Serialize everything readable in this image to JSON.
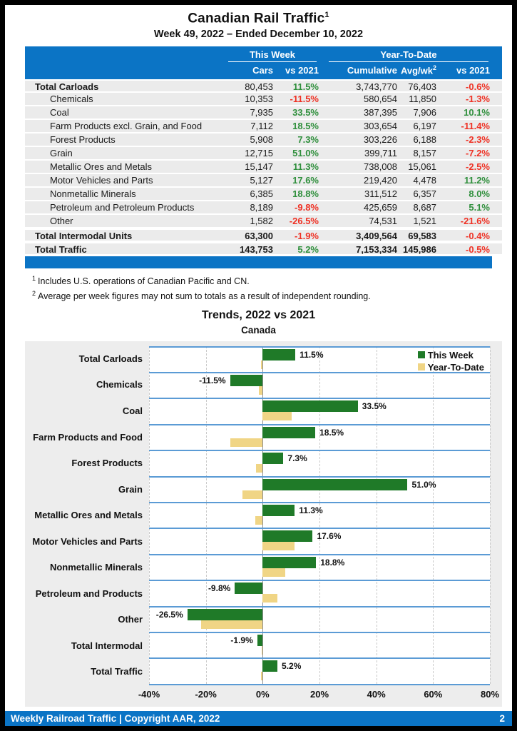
{
  "page": {
    "title": "Canadian Rail Traffic",
    "title_superscript": "1",
    "subtitle": "Week 49, 2022 – Ended December 10, 2022",
    "footer_text": "Weekly Railroad Traffic | Copyright AAR, 2022",
    "page_number": "2"
  },
  "table": {
    "group_headers": {
      "this_week": "This Week",
      "ytd": "Year-To-Date"
    },
    "col_headers": {
      "cars": "Cars",
      "tw_vs": "vs 2021",
      "cumulative": "Cumulative",
      "avg": "Avg/wk",
      "avg_superscript": "2",
      "ytd_vs": "vs 2021"
    },
    "rows": [
      {
        "label": "Total Carloads",
        "bold": true,
        "indent": false,
        "total": false,
        "cars": "80,453",
        "tw": "11.5%",
        "cum": "3,743,770",
        "avg": "76,403",
        "ytd": "-0.6%"
      },
      {
        "label": "Chemicals",
        "bold": false,
        "indent": true,
        "total": false,
        "cars": "10,353",
        "tw": "-11.5%",
        "cum": "580,654",
        "avg": "11,850",
        "ytd": "-1.3%"
      },
      {
        "label": "Coal",
        "bold": false,
        "indent": true,
        "total": false,
        "cars": "7,935",
        "tw": "33.5%",
        "cum": "387,395",
        "avg": "7,906",
        "ytd": "10.1%"
      },
      {
        "label": "Farm Products excl. Grain, and Food",
        "bold": false,
        "indent": true,
        "total": false,
        "cars": "7,112",
        "tw": "18.5%",
        "cum": "303,654",
        "avg": "6,197",
        "ytd": "-11.4%"
      },
      {
        "label": "Forest Products",
        "bold": false,
        "indent": true,
        "total": false,
        "cars": "5,908",
        "tw": "7.3%",
        "cum": "303,226",
        "avg": "6,188",
        "ytd": "-2.3%"
      },
      {
        "label": "Grain",
        "bold": false,
        "indent": true,
        "total": false,
        "cars": "12,715",
        "tw": "51.0%",
        "cum": "399,711",
        "avg": "8,157",
        "ytd": "-7.2%"
      },
      {
        "label": "Metallic Ores and Metals",
        "bold": false,
        "indent": true,
        "total": false,
        "cars": "15,147",
        "tw": "11.3%",
        "cum": "738,008",
        "avg": "15,061",
        "ytd": "-2.5%"
      },
      {
        "label": "Motor Vehicles and Parts",
        "bold": false,
        "indent": true,
        "total": false,
        "cars": "5,127",
        "tw": "17.6%",
        "cum": "219,420",
        "avg": "4,478",
        "ytd": "11.2%"
      },
      {
        "label": "Nonmetallic Minerals",
        "bold": false,
        "indent": true,
        "total": false,
        "cars": "6,385",
        "tw": "18.8%",
        "cum": "311,512",
        "avg": "6,357",
        "ytd": "8.0%"
      },
      {
        "label": "Petroleum and Petroleum Products",
        "bold": false,
        "indent": true,
        "total": false,
        "cars": "8,189",
        "tw": "-9.8%",
        "cum": "425,659",
        "avg": "8,687",
        "ytd": "5.1%"
      },
      {
        "label": "Other",
        "bold": false,
        "indent": true,
        "total": false,
        "cars": "1,582",
        "tw": "-26.5%",
        "cum": "74,531",
        "avg": "1,521",
        "ytd": "-21.6%"
      },
      {
        "label": "Total Intermodal Units",
        "bold": true,
        "indent": false,
        "total": true,
        "cars": "63,300",
        "tw": "-1.9%",
        "cum": "3,409,564",
        "avg": "69,583",
        "ytd": "-0.4%"
      },
      {
        "label": "Total Traffic",
        "bold": true,
        "indent": false,
        "total": true,
        "cars": "143,753",
        "tw": "5.2%",
        "cum": "7,153,334",
        "avg": "145,986",
        "ytd": "-0.5%"
      }
    ]
  },
  "footnotes": [
    {
      "marker": "1",
      "text": "Includes U.S. operations of Canadian Pacific and CN."
    },
    {
      "marker": "2",
      "text": "Average per week figures may not sum to totals as a result of independent rounding."
    }
  ],
  "chart_data": {
    "type": "bar",
    "orientation": "horizontal",
    "title": "Trends, 2022 vs 2021",
    "subtitle": "Canada",
    "categories": [
      "Total Carloads",
      "Chemicals",
      "Coal",
      "Farm Products and Food",
      "Forest Products",
      "Grain",
      "Metallic Ores and Metals",
      "Motor Vehicles and Parts",
      "Nonmetallic Minerals",
      "Petroleum and Products",
      "Other",
      "Total Intermodal",
      "Total Traffic"
    ],
    "series": [
      {
        "name": "This Week",
        "color": "#1f7a28",
        "values": [
          11.5,
          -11.5,
          33.5,
          18.5,
          7.3,
          51.0,
          11.3,
          17.6,
          18.8,
          -9.8,
          -26.5,
          -1.9,
          5.2
        ]
      },
      {
        "name": "Year-To-Date",
        "color": "#f0d585",
        "values": [
          -0.6,
          -1.3,
          10.1,
          -11.4,
          -2.3,
          -7.2,
          -2.5,
          11.2,
          8.0,
          5.1,
          -21.6,
          -0.4,
          -0.5
        ]
      }
    ],
    "bar_labels": [
      "11.5%",
      "-11.5%",
      "33.5%",
      "18.5%",
      "7.3%",
      "51.0%",
      "11.3%",
      "17.6%",
      "18.8%",
      "-9.8%",
      "-26.5%",
      "-1.9%",
      "5.2%"
    ],
    "xlim": [
      -40,
      80
    ],
    "tick_values": [
      -40,
      -20,
      0,
      20,
      40,
      60,
      80
    ],
    "ticks": [
      "-40%",
      "-20%",
      "0%",
      "20%",
      "40%",
      "60%",
      "80%"
    ],
    "legend_position": "top-right",
    "grid": true
  },
  "colors": {
    "header_blue": "#0b74c5",
    "row_gray": "#ebebeb",
    "panel_gray": "#ededed",
    "separator_blue": "#5b9bd5",
    "bar_green": "#1f7a28",
    "bar_yellow": "#f0d585",
    "positive_green": "#2f8f3c",
    "negative_red": "#ef3124"
  }
}
